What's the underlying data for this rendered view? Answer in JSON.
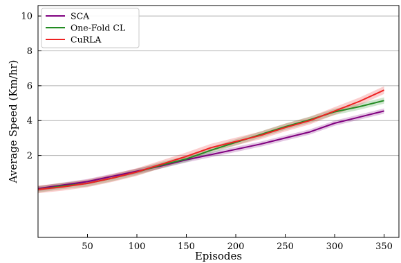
{
  "chart_data": {
    "type": "line",
    "title": "",
    "xlabel": "Episodes",
    "ylabel": "Average Speed (Km/hr)",
    "xlim": [
      0,
      365
    ],
    "ylim": [
      -2.7,
      10.6
    ],
    "xticks": [
      50,
      100,
      150,
      200,
      250,
      300,
      350
    ],
    "yticks": [
      2,
      4,
      6,
      8,
      10
    ],
    "grid": "horizontal",
    "legend_position": "top-left",
    "series": [
      {
        "name": "SCA",
        "color": "#800080",
        "x": [
          0,
          25,
          50,
          75,
          100,
          125,
          150,
          175,
          200,
          225,
          250,
          275,
          300,
          325,
          350
        ],
        "y": [
          0.1,
          0.3,
          0.5,
          0.8,
          1.1,
          1.4,
          1.75,
          2.05,
          2.35,
          2.65,
          3.0,
          3.35,
          3.85,
          4.2,
          4.55
        ],
        "band": 0.15
      },
      {
        "name": "One-Fold CL",
        "color": "#228b22",
        "x": [
          0,
          25,
          50,
          75,
          100,
          125,
          150,
          175,
          200,
          225,
          250,
          275,
          300,
          325,
          350
        ],
        "y": [
          0.05,
          0.25,
          0.4,
          0.7,
          1.05,
          1.45,
          1.8,
          2.3,
          2.75,
          3.2,
          3.65,
          4.05,
          4.5,
          4.8,
          5.15
        ],
        "band": 0.18
      },
      {
        "name": "CuRLA",
        "color": "#ee2222",
        "x": [
          0,
          25,
          50,
          75,
          100,
          125,
          150,
          175,
          200,
          225,
          250,
          275,
          300,
          325,
          350
        ],
        "y": [
          0.05,
          0.2,
          0.4,
          0.7,
          1.05,
          1.5,
          1.95,
          2.45,
          2.8,
          3.15,
          3.6,
          4.0,
          4.55,
          5.1,
          5.75
        ],
        "band": 0.22
      }
    ]
  }
}
